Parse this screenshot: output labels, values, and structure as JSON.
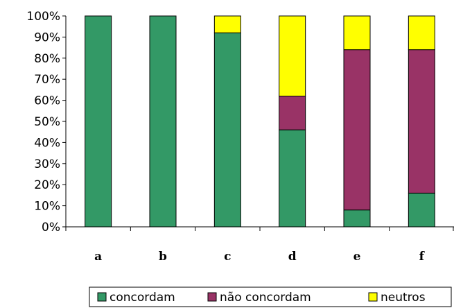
{
  "chart_data": {
    "type": "bar",
    "stacked": true,
    "categories": [
      "a",
      "b",
      "c",
      "d",
      "e",
      "f"
    ],
    "series": [
      {
        "name": "concordam",
        "color": "#339966",
        "values": [
          100,
          100,
          92,
          46,
          8,
          16
        ]
      },
      {
        "name": "não concordam",
        "color": "#993366",
        "values": [
          0,
          0,
          0,
          16,
          76,
          68
        ]
      },
      {
        "name": "neutros",
        "color": "#ffff00",
        "values": [
          0,
          0,
          8,
          38,
          16,
          16
        ]
      }
    ],
    "ylim": [
      0,
      100
    ],
    "yticks": [
      "0%",
      "10%",
      "20%",
      "30%",
      "40%",
      "50%",
      "60%",
      "70%",
      "80%",
      "90%",
      "100%"
    ],
    "title": "",
    "xlabel": "",
    "ylabel": "",
    "legend_position": "bottom",
    "grid": false
  }
}
